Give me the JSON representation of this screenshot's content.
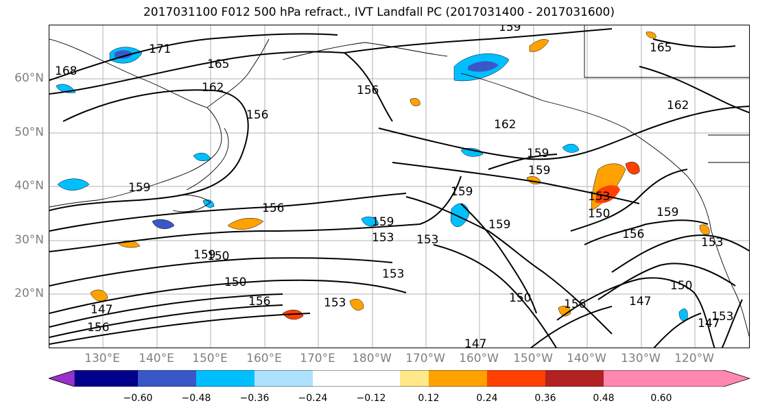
{
  "title": "2017031100 F012 500 hPa refract., IVT Landfall PC (2017031400 - 2017031600)",
  "axes": {
    "lat_labels": [
      "60°N",
      "50°N",
      "40°N",
      "30°N",
      "20°N"
    ],
    "lon_labels": [
      "130°E",
      "140°E",
      "150°E",
      "160°E",
      "170°E",
      "180°W",
      "170°W",
      "160°W",
      "150°W",
      "140°W",
      "130°W",
      "120°W"
    ],
    "label_color": "#7f7f7f",
    "grid": true
  },
  "contour_labels": [
    "171",
    "165",
    "168",
    "162",
    "159",
    "159",
    "156",
    "165",
    "162",
    "162",
    "159",
    "159",
    "159",
    "156",
    "156",
    "159",
    "153",
    "159",
    "153",
    "159",
    "153",
    "150",
    "156",
    "153",
    "153",
    "159",
    "150",
    "150",
    "156",
    "147",
    "150",
    "150",
    "153",
    "147",
    "153",
    "147",
    "156",
    "147",
    "156"
  ],
  "colorbar": {
    "colors": [
      "#9932cc",
      "#00008b",
      "#3a57c8",
      "#00bfff",
      "#ade3ff",
      "#ffffff",
      "#ffffff",
      "#ffe98a",
      "#ffa200",
      "#ff4000",
      "#b22222",
      "#ff88b0"
    ],
    "ticks": [
      "−0.60",
      "−0.48",
      "−0.36",
      "−0.24",
      "−0.12",
      "0.12",
      "0.24",
      "0.36",
      "0.48",
      "0.60"
    ],
    "extend": "both"
  }
}
